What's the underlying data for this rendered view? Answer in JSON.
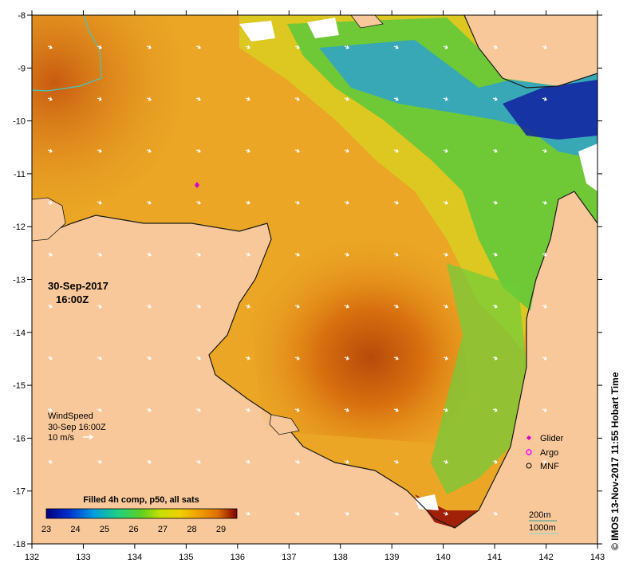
{
  "colors": {
    "land": "#f8c89b",
    "nodata": "#ffffff",
    "coast": "#1a1a1a",
    "bathy_200m": "#2f9e9a",
    "bathy_1000m": "#7fd7cf",
    "wind_arrow": "#ffffff",
    "glider": "#d400d4",
    "argo": "#ff00ff",
    "mnf": "#000000"
  },
  "map": {
    "date": "30-Sep-2017",
    "time": "16:00Z",
    "lon_ticks": [
      "132",
      "133",
      "134",
      "135",
      "136",
      "137",
      "138",
      "139",
      "140",
      "141",
      "142",
      "143"
    ],
    "lat_ticks": [
      "-8",
      "-9",
      "-10",
      "-11",
      "-12",
      "-13",
      "-14",
      "-15",
      "-16",
      "-17",
      "-18"
    ]
  },
  "wind_legend": {
    "title": "WindSpeed",
    "datetime": "30-Sep 16:00Z",
    "scale": "10 m/s"
  },
  "colorbar": {
    "title": "Filled 4h comp, p50, all sats",
    "labels": [
      "23",
      "24",
      "25",
      "26",
      "27",
      "28",
      "29"
    ],
    "colors": [
      "#00007f",
      "#0030d0",
      "#00a0e0",
      "#20d080",
      "#60d020",
      "#c8e000",
      "#f0d000",
      "#f0a000",
      "#e07000",
      "#c04000",
      "#800000"
    ]
  },
  "symbol_legend": {
    "items": [
      {
        "label": "Glider",
        "icon": "diamond"
      },
      {
        "label": "Argo",
        "icon": "ring-star"
      },
      {
        "label": "MNF",
        "icon": "circle"
      }
    ]
  },
  "bathy_legend": {
    "label_200m": "200m",
    "label_1000m": "1000m"
  },
  "credit": "© IMOS 13-Nov-2017 11:55 Hobart Time"
}
